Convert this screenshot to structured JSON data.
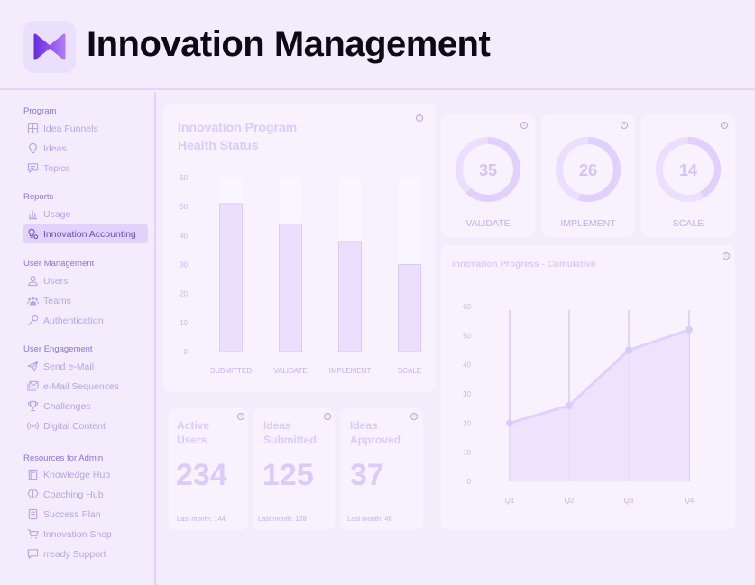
{
  "header": {
    "title": "Innovation Management",
    "logo_icon": "bowtie-logo-icon"
  },
  "sidebar": {
    "sections": [
      {
        "title": "Program",
        "items": [
          {
            "label": "Idea Funnels",
            "icon": "grid-icon"
          },
          {
            "label": "Ideas",
            "icon": "lightbulb-icon"
          },
          {
            "label": "Topics",
            "icon": "chat-icon"
          }
        ]
      },
      {
        "title": "Reports",
        "items": [
          {
            "label": "Usage",
            "icon": "bar-chart-icon"
          },
          {
            "label": "Innovation Accounting",
            "icon": "settings-bulb-icon",
            "active": true
          }
        ]
      },
      {
        "title": "User Management",
        "items": [
          {
            "label": "Users",
            "icon": "user-icon"
          },
          {
            "label": "Teams",
            "icon": "team-icon"
          },
          {
            "label": "Authentication",
            "icon": "key-icon"
          }
        ]
      },
      {
        "title": "User Engagement",
        "items": [
          {
            "label": "Send e-Mail",
            "icon": "send-icon"
          },
          {
            "label": "e-Mail Sequences",
            "icon": "mail-icon"
          },
          {
            "label": "Challenges",
            "icon": "trophy-icon"
          },
          {
            "label": "Digital Content",
            "icon": "broadcast-icon"
          }
        ]
      },
      {
        "title": "Resources for Admin",
        "items": [
          {
            "label": "Knowledge Hub",
            "icon": "book-icon"
          },
          {
            "label": "Coaching Hub",
            "icon": "brain-icon"
          },
          {
            "label": "Success Plan",
            "icon": "document-icon"
          },
          {
            "label": "Innovation Shop",
            "icon": "cart-icon"
          },
          {
            "label": "rready Support",
            "icon": "message-icon"
          }
        ]
      }
    ]
  },
  "health": {
    "title_line1": "Innovation Program",
    "title_line2": "Health Status",
    "chart_data": {
      "type": "bar",
      "categories": [
        "SUBMITTED",
        "VALIDATE",
        "IMPLEMENT",
        "SCALE"
      ],
      "values": [
        51,
        44,
        38,
        30
      ],
      "ylim": [
        0,
        60
      ],
      "yticks": [
        0,
        10,
        20,
        30,
        40,
        50,
        60
      ]
    }
  },
  "gauges": [
    {
      "value": "35",
      "fraction": 0.62,
      "label": "VALIDATE"
    },
    {
      "value": "26",
      "fraction": 0.55,
      "label": "IMPLEMENT"
    },
    {
      "value": "14",
      "fraction": 0.42,
      "label": "SCALE"
    }
  ],
  "progress": {
    "title": "Innovation Progress - Cumulative",
    "chart_data": {
      "type": "area",
      "categories": [
        "Q1",
        "Q2",
        "Q3",
        "Q4"
      ],
      "values": [
        20,
        26,
        45,
        52
      ],
      "ylim": [
        0,
        60
      ],
      "yticks": [
        0,
        10,
        20,
        30,
        40,
        50,
        60
      ]
    }
  },
  "kpis": [
    {
      "title_line1": "Active",
      "title_line2": "Users",
      "value": "234",
      "last": "Last month: 144"
    },
    {
      "title_line1": "Ideas",
      "title_line2": "Submitted",
      "value": "125",
      "last": "Last month: 128"
    },
    {
      "title_line1": "Ideas",
      "title_line2": "Approved",
      "value": "37",
      "last": "Last month: 48"
    }
  ],
  "info_symbol": "i",
  "colors": {
    "accent": "#7b4bdc",
    "bar": "#e8dafc",
    "track": "#efe6fc"
  }
}
